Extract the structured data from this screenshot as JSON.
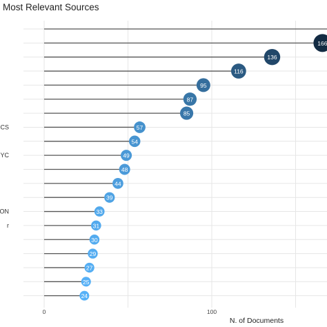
{
  "chart_data": {
    "type": "scatter",
    "style": "lollipop",
    "title": "Most Relevant Sources",
    "xlabel": "N. of Documents",
    "ylabel": "",
    "xlim": [
      0,
      168
    ],
    "x_ticks": [
      "0",
      "100"
    ],
    "grid": true,
    "legend": "none",
    "categories": [
      "",
      "",
      "",
      "",
      "",
      "",
      "",
      "CS",
      "",
      "YC",
      "",
      "",
      "",
      "ATION",
      "r",
      "",
      "",
      "",
      "",
      ""
    ],
    "values": [
      null,
      166,
      136,
      116,
      95,
      87,
      85,
      57,
      54,
      49,
      48,
      44,
      39,
      33,
      31,
      30,
      29,
      27,
      25,
      24
    ],
    "labels": [
      "",
      "166",
      "136",
      "116",
      "95",
      "87",
      "85",
      "57",
      "54",
      "49",
      "48",
      "44",
      "39",
      "33",
      "31",
      "30",
      "29",
      "27",
      "25",
      "24"
    ],
    "colors": {
      "low": "#56B1F7",
      "high": "#132B43",
      "stem": "#555555",
      "grid": "#e6e6e6"
    }
  }
}
